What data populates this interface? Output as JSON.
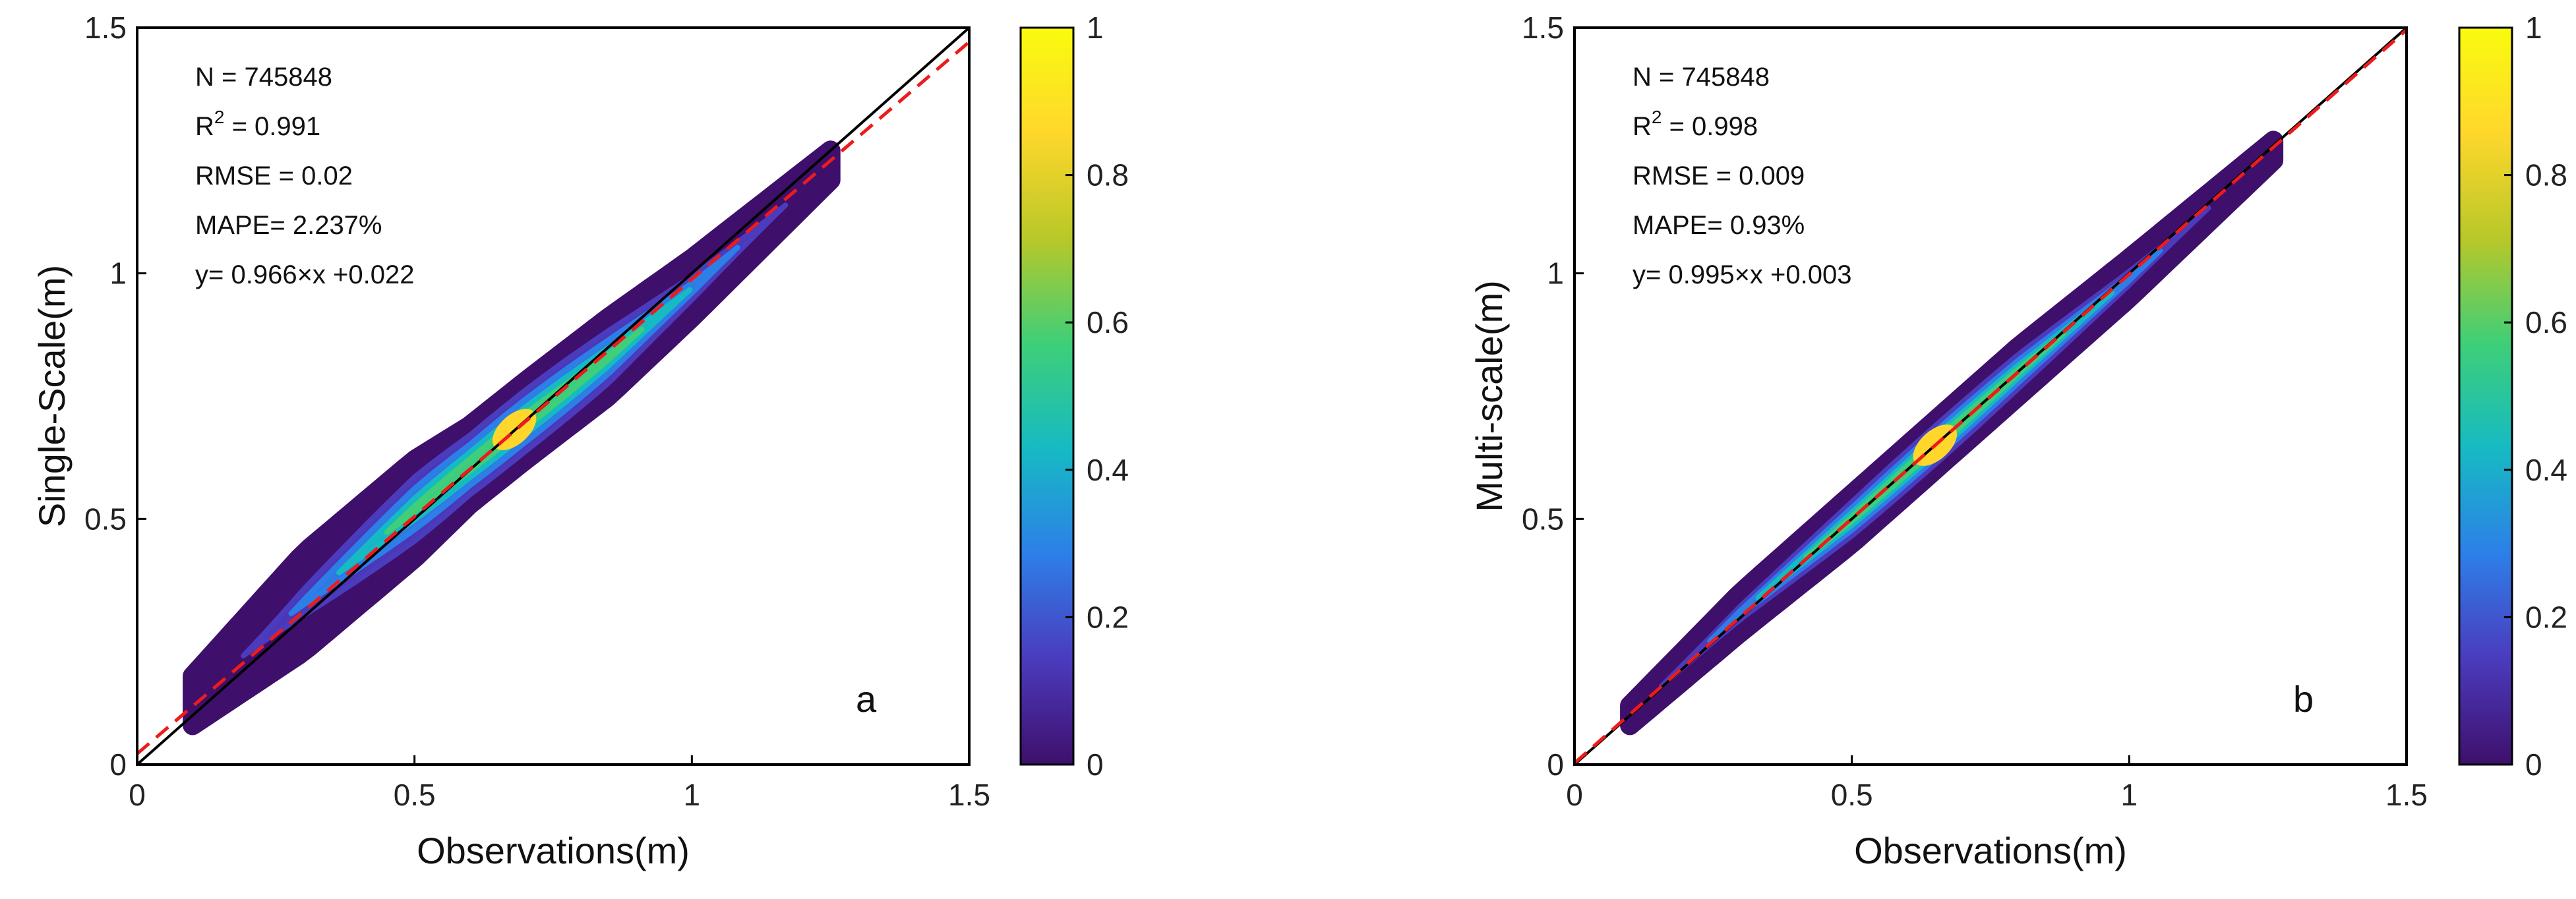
{
  "chart_data": [
    {
      "type": "scatter",
      "panel_letter": "a",
      "xlabel": "Observations(m)",
      "ylabel": "Single-Scale(m)",
      "xlim": [
        0,
        1.5
      ],
      "ylim": [
        0,
        1.5
      ],
      "xticks": [
        "0",
        "0.5",
        "1",
        "1.5"
      ],
      "yticks": [
        "0",
        "0.5",
        "1",
        "1.5"
      ],
      "stats": {
        "n": "N = 745848",
        "r2_prefix": "R",
        "r2_sup": "2",
        "r2_value": " = 0.991",
        "rmse": "RMSE = 0.02",
        "mape": "MAPE= 2.237%",
        "fit": "y= 0.966×x +0.022"
      },
      "one_to_one": [
        [
          0,
          0
        ],
        [
          1.5,
          1.5
        ]
      ],
      "fit_line": {
        "slope": 0.966,
        "intercept": 0.022,
        "x_range": [
          0,
          1.5
        ]
      },
      "cloud": {
        "x_range": [
          0.1,
          1.25
        ],
        "spine": [
          [
            0.1,
            0.13
          ],
          [
            0.3,
            0.33
          ],
          [
            0.5,
            0.52
          ],
          [
            0.6,
            0.61
          ],
          [
            0.7,
            0.7
          ],
          [
            0.85,
            0.83
          ],
          [
            1.0,
            0.97
          ],
          [
            1.25,
            1.22
          ]
        ],
        "outer_width": [
          0.05,
          0.1,
          0.1,
          0.08,
          0.08,
          0.08,
          0.06,
          0.03
        ],
        "density_peak_x": 0.68
      },
      "colorbar": {
        "min": 0,
        "max": 1,
        "ticks": [
          "0",
          "0.2",
          "0.4",
          "0.6",
          "0.8",
          "1"
        ],
        "colors": [
          "#3e0f6b",
          "#4b3bbd",
          "#2d7fe8",
          "#16bac3",
          "#3ecf78",
          "#b8c828",
          "#ffd72c",
          "#f9fb0e"
        ]
      }
    },
    {
      "type": "scatter",
      "panel_letter": "b",
      "xlabel": "Observations(m)",
      "ylabel": "Multi-scale(m)",
      "xlim": [
        0,
        1.5
      ],
      "ylim": [
        0,
        1.5
      ],
      "xticks": [
        "0",
        "0.5",
        "1",
        "1.5"
      ],
      "yticks": [
        "0",
        "0.5",
        "1",
        "1.5"
      ],
      "stats": {
        "n": "N = 745848",
        "r2_prefix": "R",
        "r2_sup": "2",
        "r2_value": " = 0.998",
        "rmse": "RMSE = 0.009",
        "mape": "MAPE= 0.93%",
        "fit": "y= 0.995×x +0.003"
      },
      "one_to_one": [
        [
          0,
          0
        ],
        [
          1.5,
          1.5
        ]
      ],
      "fit_line": {
        "slope": 0.995,
        "intercept": 0.003,
        "x_range": [
          0,
          1.5
        ]
      },
      "cloud": {
        "x_range": [
          0.1,
          1.26
        ],
        "spine": [
          [
            0.1,
            0.1
          ],
          [
            0.3,
            0.31
          ],
          [
            0.5,
            0.5
          ],
          [
            0.65,
            0.65
          ],
          [
            0.8,
            0.8
          ],
          [
            1.0,
            0.99
          ],
          [
            1.26,
            1.25
          ]
        ],
        "outer_width": [
          0.02,
          0.04,
          0.05,
          0.05,
          0.05,
          0.04,
          0.02
        ],
        "density_peak_x": 0.65
      },
      "colorbar": {
        "min": 0,
        "max": 1,
        "ticks": [
          "0",
          "0.2",
          "0.4",
          "0.6",
          "0.8",
          "1"
        ],
        "colors": [
          "#3e0f6b",
          "#4b3bbd",
          "#2d7fe8",
          "#16bac3",
          "#3ecf78",
          "#b8c828",
          "#ffd72c",
          "#f9fb0e"
        ]
      }
    }
  ]
}
